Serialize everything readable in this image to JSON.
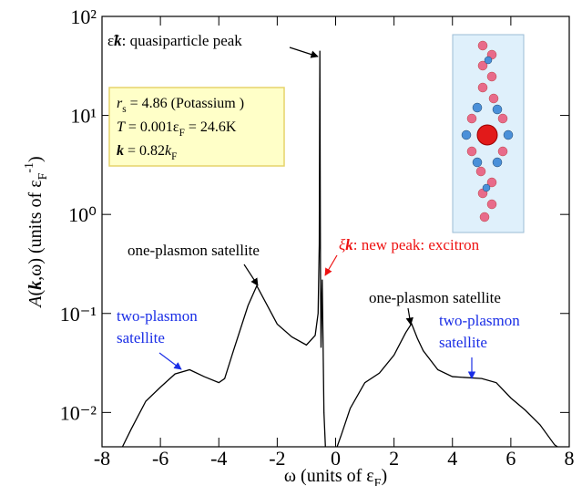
{
  "chart_data": {
    "type": "line",
    "log_y": true,
    "xlabel": [
      "ω (units of ε",
      {
        "sub": "F"
      },
      ")"
    ],
    "ylabel": [
      {
        "i": "A"
      },
      "(",
      {
        "b": "k"
      },
      ",ω)  (units of ε",
      {
        "sub": "F"
      },
      {
        "sup": "-1"
      },
      ")"
    ],
    "xlim": [
      -8,
      8
    ],
    "xticks": [
      -8,
      -6,
      -4,
      -2,
      0,
      2,
      4,
      6,
      8
    ],
    "ylim": [
      0.0045,
      100
    ],
    "yticks": [
      {
        "value": 0.01,
        "label": "10⁻²"
      },
      {
        "value": 0.1,
        "label": "10⁻¹"
      },
      {
        "value": 1,
        "label": "10⁰"
      },
      {
        "value": 10,
        "label": "10¹"
      },
      {
        "value": 100,
        "label": "10²"
      }
    ],
    "series": [
      {
        "color": "#000000",
        "x": [
          -7.3,
          -7,
          -6.5,
          -6,
          -5.5,
          -5,
          -4.5,
          -4,
          -3.8,
          -3.5,
          -3,
          -2.7,
          -2.4,
          -2,
          -1.5,
          -1,
          -0.7,
          -0.6,
          -0.56,
          -0.54,
          -0.52,
          -0.5,
          -0.48,
          -0.46,
          -0.43,
          -0.4,
          -0.35
        ],
        "values": [
          0.0045,
          0.0068,
          0.013,
          0.018,
          0.0245,
          0.027,
          0.023,
          0.02,
          0.022,
          0.042,
          0.12,
          0.19,
          0.13,
          0.078,
          0.058,
          0.048,
          0.06,
          0.1,
          0.5,
          45,
          0.3,
          0.045,
          0.12,
          0.22,
          0.05,
          0.01,
          0.0045
        ]
      },
      {
        "color": "#000000",
        "x": [
          0.05,
          0.2,
          0.5,
          1,
          1.5,
          2,
          2.4,
          2.6,
          2.8,
          3,
          3.5,
          4,
          5,
          5.5,
          6,
          6.5,
          7,
          7.5,
          7.6
        ],
        "values": [
          0.0045,
          0.006,
          0.011,
          0.02,
          0.025,
          0.038,
          0.064,
          0.079,
          0.056,
          0.042,
          0.027,
          0.023,
          0.022,
          0.02,
          0.014,
          0.0105,
          0.0075,
          0.0047,
          0.0045
        ]
      }
    ],
    "box": [
      [
        {
          "i": "r"
        },
        {
          "sub": "s"
        },
        " = 4.86 (Potassium )"
      ],
      [
        {
          "i": "T"
        },
        " = 0.001ε",
        {
          "sub": "F"
        },
        " = 24.6K"
      ],
      [
        {
          "b": "k"
        },
        " = 0.82",
        {
          "i": "k"
        },
        {
          "sub": "F"
        }
      ]
    ],
    "annotations": [
      {
        "color": "#000000",
        "lines": [
          [
            "ε̃",
            {
              "b": "k"
            },
            ": quasiparticle peak"
          ]
        ]
      },
      {
        "color": "#000000",
        "lines": [
          [
            "one-plasmon satellite"
          ]
        ]
      },
      {
        "color": "#ee1111",
        "lines": [
          [
            {
              "i": "ξ"
            },
            {
              "b": "k"
            },
            ": new peak: excitron"
          ]
        ]
      },
      {
        "color": "#000000",
        "lines": [
          [
            "one-plasmon satellite"
          ]
        ]
      },
      {
        "color": "#1a2ee6",
        "lines": [
          [
            "two-plasmon"
          ],
          [
            "satellite"
          ]
        ]
      },
      {
        "color": "#1a2ee6",
        "lines": [
          [
            "two-plasmon"
          ],
          [
            "satellite"
          ]
        ]
      }
    ]
  }
}
